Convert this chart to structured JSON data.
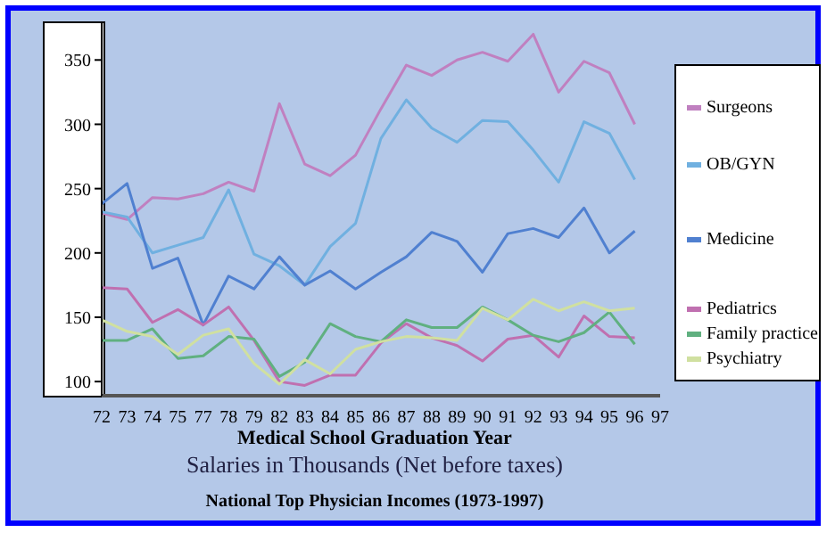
{
  "chart_data": {
    "type": "line",
    "title": "National Top Physician Incomes (1973-1997)",
    "subtitle": "Salaries in Thousands (Net before taxes)",
    "xlabel": "Medical School Graduation Year",
    "categories": [
      "72",
      "73",
      "74",
      "75",
      "77",
      "78",
      "79",
      "82",
      "83",
      "84",
      "85",
      "86",
      "87",
      "88",
      "89",
      "90",
      "91",
      "92",
      "93",
      "94",
      "95",
      "96",
      "97"
    ],
    "series": [
      {
        "name": "Surgeons",
        "color": "#c080c0",
        "values": [
          231,
          226,
          243,
          242,
          246,
          255,
          248,
          316,
          269,
          260,
          276,
          312,
          346,
          338,
          350,
          356,
          349,
          370,
          325,
          349,
          340,
          300,
          null
        ]
      },
      {
        "name": "OB/GYN",
        "color": "#70b0e0",
        "values": [
          232,
          228,
          200,
          206,
          212,
          249,
          199,
          190,
          175,
          205,
          223,
          289,
          319,
          297,
          286,
          303,
          302,
          280,
          255,
          302,
          293,
          257,
          null
        ]
      },
      {
        "name": "Medicine",
        "color": "#5080d0",
        "values": [
          238,
          254,
          188,
          196,
          144,
          182,
          172,
          197,
          175,
          186,
          172,
          185,
          197,
          216,
          209,
          185,
          215,
          219,
          212,
          235,
          200,
          217,
          null
        ]
      },
      {
        "name": "Pediatrics",
        "color": "#c070b0",
        "values": [
          173,
          172,
          146,
          156,
          144,
          158,
          132,
          100,
          97,
          105,
          105,
          130,
          145,
          134,
          128,
          116,
          133,
          136,
          119,
          151,
          135,
          134,
          null
        ]
      },
      {
        "name": "Family practice",
        "color": "#60b080",
        "values": [
          132,
          132,
          141,
          118,
          120,
          135,
          133,
          104,
          115,
          145,
          135,
          131,
          148,
          142,
          142,
          158,
          148,
          136,
          131,
          138,
          154,
          129,
          null
        ]
      },
      {
        "name": "Psychiatry",
        "color": "#d0e0a0",
        "values": [
          148,
          139,
          135,
          121,
          136,
          141,
          114,
          98,
          117,
          106,
          125,
          131,
          135,
          134,
          132,
          157,
          148,
          164,
          155,
          162,
          155,
          157,
          null
        ]
      }
    ],
    "ylim": [
      89,
      380
    ],
    "yticks": [
      100,
      150,
      200,
      250,
      300,
      350
    ],
    "grid": false,
    "legend": "right",
    "marker": "none",
    "line_style": "solid"
  }
}
